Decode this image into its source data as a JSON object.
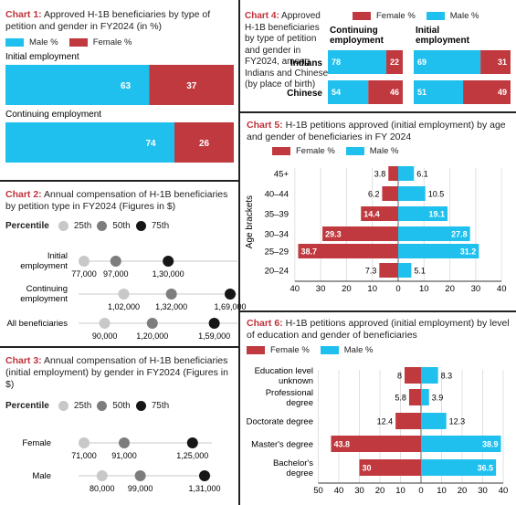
{
  "colors": {
    "female": "#c0393f",
    "male": "#1fc0ee",
    "p25": "#c8c8c8",
    "p50": "#7d7d7d",
    "p75": "#161616"
  },
  "chart1": {
    "num": "Chart 1:",
    "title": "Approved H-1B beneficiaries by type of petition and gender in FY2024 (in %)",
    "legend": [
      "Male %",
      "Female %"
    ]
  },
  "chart2": {
    "num": "Chart 2:",
    "title": "Annual compensation of H-1B beneficiaries by petition type in FY2024 (Figures in $)",
    "percentile_label": "Percentile",
    "percentiles": [
      "25th",
      "50th",
      "75th"
    ]
  },
  "chart3": {
    "num": "Chart 3:",
    "title": "Annual compensation of H-1B beneficiaries (initial employment) by gender in FY2024 (Figures in $)",
    "percentile_label": "Percentile",
    "percentiles": [
      "25th",
      "50th",
      "75th"
    ]
  },
  "chart4": {
    "num": "Chart 4:",
    "title": "Approved H-1B beneficiaries by type of petition and gender in FY2024, among Indians and Chinese (by place of birth)",
    "legend": [
      "Female %",
      "Male %"
    ]
  },
  "chart5": {
    "num": "Chart 5:",
    "title": "H-1B petitions approved (initial employment) by age and gender of beneficiaries in FY 2024",
    "legend": [
      "Female %",
      "Male %"
    ]
  },
  "chart6": {
    "num": "Chart 6:",
    "title": "H-1B petitions approved (initial employment) by level of education and gender of beneficiaries",
    "legend": [
      "Female %",
      "Male %"
    ]
  },
  "chart_data": [
    {
      "id": "chart1",
      "type": "bar",
      "categories": [
        "Initial employment",
        "Continuing employment"
      ],
      "series": [
        {
          "name": "Male %",
          "values": [
            63,
            74
          ]
        },
        {
          "name": "Female %",
          "values": [
            37,
            26
          ]
        }
      ]
    },
    {
      "id": "chart2",
      "type": "scatter",
      "categories": [
        "Initial employment",
        "Continuing employment",
        "All beneficiaries"
      ],
      "series": [
        {
          "name": "25th",
          "values": [
            77000,
            102000,
            90000
          ],
          "labels": [
            "77,000",
            "1,02,000",
            "90,000"
          ]
        },
        {
          "name": "50th",
          "values": [
            97000,
            132000,
            120000
          ],
          "labels": [
            "97,000",
            "1,32,000",
            "1,20,000"
          ]
        },
        {
          "name": "75th",
          "values": [
            130000,
            169000,
            159000
          ],
          "labels": [
            "1,30,000",
            "1,69,000",
            "1,59,000"
          ]
        }
      ]
    },
    {
      "id": "chart3",
      "type": "scatter",
      "categories": [
        "Female",
        "Male"
      ],
      "series": [
        {
          "name": "25th",
          "values": [
            71000,
            80000
          ],
          "labels": [
            "71,000",
            "80,000"
          ]
        },
        {
          "name": "50th",
          "values": [
            91000,
            99000
          ],
          "labels": [
            "91,000",
            "99,000"
          ]
        },
        {
          "name": "75th",
          "values": [
            125000,
            131000
          ],
          "labels": [
            "1,25,000",
            "1,31,000"
          ]
        }
      ]
    },
    {
      "id": "chart4",
      "type": "bar",
      "groups": [
        "Continuing employment",
        "Initial employment"
      ],
      "categories": [
        "Indians",
        "Chinese"
      ],
      "series": [
        {
          "name": "Male %",
          "continuing": [
            78,
            54
          ],
          "initial": [
            69,
            51
          ]
        },
        {
          "name": "Female %",
          "continuing": [
            22,
            46
          ],
          "initial": [
            31,
            49
          ]
        }
      ]
    },
    {
      "id": "chart5",
      "type": "bar",
      "categories": [
        "45+",
        "40–44",
        "35–39",
        "30–34",
        "25–29",
        "20–24"
      ],
      "series": [
        {
          "name": "Female %",
          "values": [
            3.8,
            6.2,
            14.4,
            29.3,
            38.7,
            7.3
          ]
        },
        {
          "name": "Male %",
          "values": [
            6.1,
            10.5,
            19.1,
            27.8,
            31.2,
            5.1
          ]
        }
      ],
      "ylabel": "Age brackets",
      "xticks": [
        "40",
        "30",
        "20",
        "10",
        "0",
        "10",
        "20",
        "30",
        "40"
      ]
    },
    {
      "id": "chart6",
      "type": "bar",
      "categories": [
        "Education level unknown",
        "Professional degree",
        "Doctorate degree",
        "Master's degree",
        "Bachelor's degree"
      ],
      "series": [
        {
          "name": "Female %",
          "values": [
            8,
            5.8,
            12.4,
            43.8,
            30
          ]
        },
        {
          "name": "Male %",
          "values": [
            8.3,
            3.9,
            12.3,
            38.9,
            36.5
          ]
        }
      ],
      "xticks": [
        "50",
        "40",
        "30",
        "20",
        "10",
        "0",
        "10",
        "20",
        "30",
        "40"
      ]
    }
  ]
}
